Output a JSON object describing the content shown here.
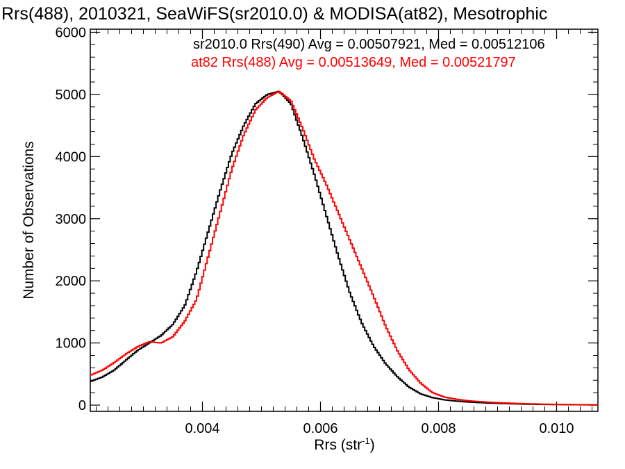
{
  "chart_data": {
    "type": "line",
    "title": "Rrs(488), 2010321, SeaWiFS(sr2010.0) & MODISA(at82), Mesotrophic",
    "xlabel": "Rrs (str",
    "xlabel_sup": "-1",
    "xlabel_close": ")",
    "ylabel": "Number of Observations",
    "xlim": [
      0.0021,
      0.0107
    ],
    "ylim": [
      -100,
      6050
    ],
    "xticks": [
      0.004,
      0.006,
      0.008,
      0.01
    ],
    "xtick_labels": [
      "0.004",
      "0.006",
      "0.008",
      "0.010"
    ],
    "yticks": [
      0,
      1000,
      2000,
      3000,
      4000,
      5000,
      6000
    ],
    "ytick_labels": [
      "0",
      "1000",
      "2000",
      "3000",
      "4000",
      "5000",
      "6000"
    ],
    "legend_position": "top-right",
    "series": [
      {
        "name": "sr2010.0 Rrs(490) Avg = 0.00507921, Med = 0.00512106",
        "color": "#000000",
        "x": [
          0.0021,
          0.0023,
          0.0025,
          0.0027,
          0.0029,
          0.0031,
          0.0033,
          0.0035,
          0.0037,
          0.0039,
          0.0041,
          0.0043,
          0.0045,
          0.0047,
          0.0049,
          0.0051,
          0.0053,
          0.0055,
          0.0057,
          0.0059,
          0.0061,
          0.0063,
          0.0065,
          0.0067,
          0.0069,
          0.0071,
          0.0073,
          0.0075,
          0.0077,
          0.0079,
          0.0081,
          0.0083,
          0.0085,
          0.0087,
          0.0089,
          0.0091,
          0.0093,
          0.0095,
          0.0097,
          0.0099,
          0.0101,
          0.0103,
          0.0105,
          0.0107
        ],
        "values": [
          380,
          450,
          560,
          720,
          880,
          1000,
          1120,
          1300,
          1600,
          2150,
          2800,
          3450,
          4050,
          4500,
          4850,
          5000,
          5050,
          4850,
          4300,
          3700,
          3050,
          2400,
          1800,
          1320,
          950,
          670,
          460,
          290,
          180,
          120,
          85,
          65,
          50,
          40,
          32,
          26,
          20,
          15,
          12,
          10,
          8,
          6,
          5,
          4
        ]
      },
      {
        "name": "at82 Rrs(488) Avg = 0.00513649, Med = 0.00521797",
        "color": "#ff0000",
        "x": [
          0.0021,
          0.0023,
          0.0025,
          0.0027,
          0.0029,
          0.0031,
          0.0033,
          0.0035,
          0.0037,
          0.0039,
          0.0041,
          0.0043,
          0.0045,
          0.0047,
          0.0049,
          0.0051,
          0.0053,
          0.0055,
          0.0057,
          0.0059,
          0.0061,
          0.0063,
          0.0065,
          0.0067,
          0.0069,
          0.0071,
          0.0073,
          0.0075,
          0.0077,
          0.0079,
          0.0081,
          0.0083,
          0.0085,
          0.0087,
          0.0089,
          0.0091,
          0.0093,
          0.0095,
          0.0097,
          0.0099,
          0.0101,
          0.0103,
          0.0105,
          0.0107
        ],
        "values": [
          480,
          560,
          680,
          820,
          940,
          1020,
          1000,
          1100,
          1350,
          1700,
          2400,
          3100,
          3800,
          4350,
          4750,
          4950,
          5050,
          4900,
          4450,
          3950,
          3550,
          3100,
          2650,
          2200,
          1750,
          1280,
          880,
          570,
          350,
          200,
          130,
          95,
          70,
          55,
          45,
          35,
          28,
          22,
          17,
          13,
          10,
          8,
          6,
          5
        ]
      }
    ]
  }
}
